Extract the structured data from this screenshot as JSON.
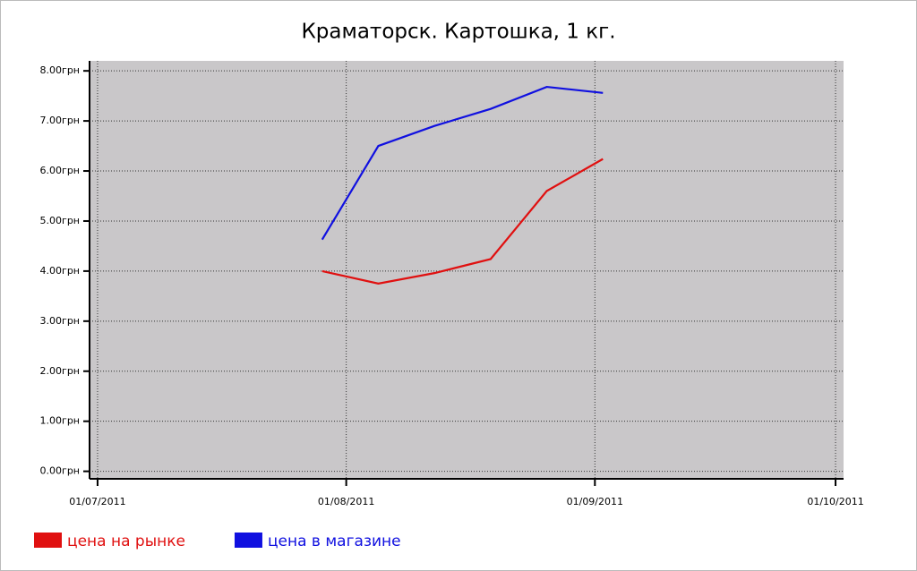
{
  "chart_data": {
    "type": "line",
    "title": "Краматорск. Картошка, 1 кг.",
    "x": [
      "2011-07-29",
      "2011-08-05",
      "2011-08-12",
      "2011-08-19",
      "2011-08-26",
      "2011-09-02"
    ],
    "series": [
      {
        "name": "цена на рынке",
        "color": "#e01010",
        "values": [
          4.0,
          3.75,
          3.96,
          4.24,
          5.6,
          6.24
        ]
      },
      {
        "name": "цена в магазине",
        "color": "#1010e0",
        "values": [
          4.63,
          6.5,
          6.9,
          7.24,
          7.68,
          7.56
        ]
      }
    ],
    "xlim": [
      "2011-06-30",
      "2011-10-02"
    ],
    "xticks": [
      {
        "value": "2011-07-01",
        "label": "01/07/2011"
      },
      {
        "value": "2011-08-01",
        "label": "01/08/2011"
      },
      {
        "value": "2011-09-01",
        "label": "01/09/2011"
      },
      {
        "value": "2011-10-01",
        "label": "01/10/2011"
      }
    ],
    "ylim": [
      -0.15,
      8.2
    ],
    "yticks": [
      {
        "value": 0,
        "label": "0.00грн"
      },
      {
        "value": 1,
        "label": "1.00грн"
      },
      {
        "value": 2,
        "label": "2.00грн"
      },
      {
        "value": 3,
        "label": "3.00грн"
      },
      {
        "value": 4,
        "label": "4.00грн"
      },
      {
        "value": 5,
        "label": "5.00грн"
      },
      {
        "value": 6,
        "label": "6.00грн"
      },
      {
        "value": 7,
        "label": "7.00грн"
      },
      {
        "value": 8,
        "label": "8.00грн"
      }
    ],
    "grid": true,
    "legend": "bottom-left"
  }
}
